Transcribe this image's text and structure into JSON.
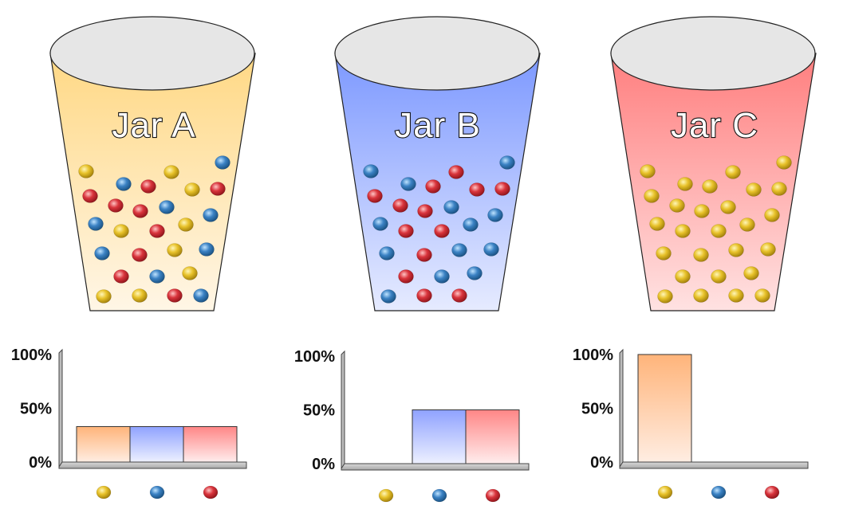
{
  "colors": {
    "yellow": "#E8C22A",
    "blue": "#3B82C4",
    "red": "#D9343C",
    "jar_a_fill": "#FFDA8A",
    "jar_b_fill": "#8FA8FF",
    "jar_c_fill": "#FF8A8A",
    "axis_gray": "#C4C4C4",
    "bar_yellow": "#FFB27A",
    "bar_blue": "#8FA4FF",
    "bar_red": "#FF8A8A"
  },
  "jars": [
    {
      "label": "Jar A",
      "fill_color": "#FFDA8A",
      "marble_counts": {
        "yellow": 9,
        "blue": 9,
        "red": 9
      }
    },
    {
      "label": "Jar B",
      "fill_color": "#8FA8FF",
      "marble_counts": {
        "yellow": 0,
        "blue": 13,
        "red": 13
      }
    },
    {
      "label": "Jar C",
      "fill_color": "#FF8A8A",
      "marble_counts": {
        "yellow": 27,
        "blue": 0,
        "red": 0
      }
    }
  ],
  "chart_data": [
    {
      "type": "bar",
      "categories": [
        "yellow",
        "blue",
        "red"
      ],
      "values": [
        33,
        33,
        33
      ],
      "y_ticks": [
        "0%",
        "50%",
        "100%"
      ],
      "ylim": [
        0,
        100
      ],
      "grid": false
    },
    {
      "type": "bar",
      "categories": [
        "yellow",
        "blue",
        "red"
      ],
      "values": [
        0,
        50,
        50
      ],
      "y_ticks": [
        "0%",
        "50%",
        "100%"
      ],
      "ylim": [
        0,
        100
      ],
      "grid": false
    },
    {
      "type": "bar",
      "categories": [
        "yellow",
        "blue",
        "red"
      ],
      "values": [
        100,
        0,
        0
      ],
      "y_ticks": [
        "0%",
        "50%",
        "100%"
      ],
      "ylim": [
        0,
        100
      ],
      "grid": false
    }
  ]
}
